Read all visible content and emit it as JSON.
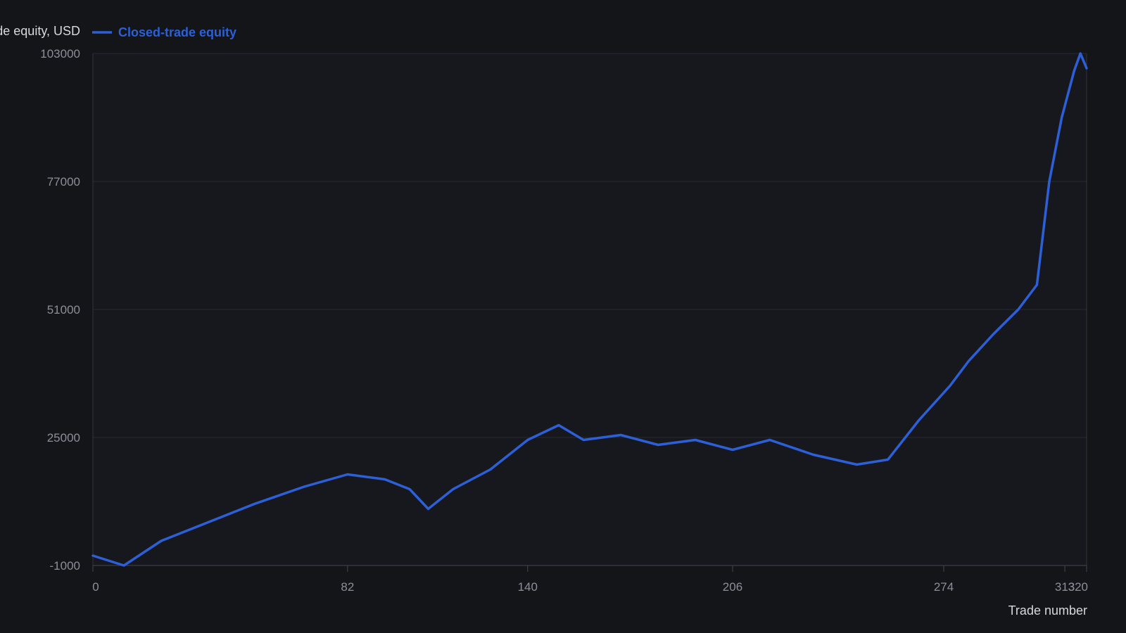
{
  "chart_data": {
    "type": "line",
    "ylabel": "Closed-trade equity, USD",
    "xlabel": "Trade number",
    "legend": "top-left",
    "grid": true,
    "xlim": [
      0,
      320
    ],
    "ylim": [
      -1000,
      103000
    ],
    "x_ticks": [
      0,
      82,
      140,
      206,
      274,
      313,
      320
    ],
    "y_ticks": [
      -1000,
      25000,
      51000,
      77000,
      103000
    ],
    "series": [
      {
        "name": "Closed-trade equity",
        "color": "#2d5fd6",
        "points": [
          [
            0,
            1000
          ],
          [
            10,
            -1000
          ],
          [
            22,
            4000
          ],
          [
            38,
            8000
          ],
          [
            52,
            11500
          ],
          [
            68,
            15000
          ],
          [
            82,
            17500
          ],
          [
            94,
            16500
          ],
          [
            102,
            14500
          ],
          [
            108,
            10500
          ],
          [
            116,
            14500
          ],
          [
            128,
            18500
          ],
          [
            140,
            24500
          ],
          [
            150,
            27500
          ],
          [
            158,
            24500
          ],
          [
            170,
            25500
          ],
          [
            182,
            23500
          ],
          [
            194,
            24500
          ],
          [
            206,
            22500
          ],
          [
            218,
            24500
          ],
          [
            232,
            21500
          ],
          [
            246,
            19500
          ],
          [
            256,
            20500
          ],
          [
            266,
            28500
          ],
          [
            276,
            35500
          ],
          [
            282,
            40500
          ],
          [
            290,
            46000
          ],
          [
            298,
            51000
          ],
          [
            304,
            56000
          ],
          [
            308,
            77000
          ],
          [
            312,
            90000
          ],
          [
            316,
            99500
          ],
          [
            318,
            103000
          ],
          [
            320,
            100000
          ]
        ]
      }
    ]
  }
}
